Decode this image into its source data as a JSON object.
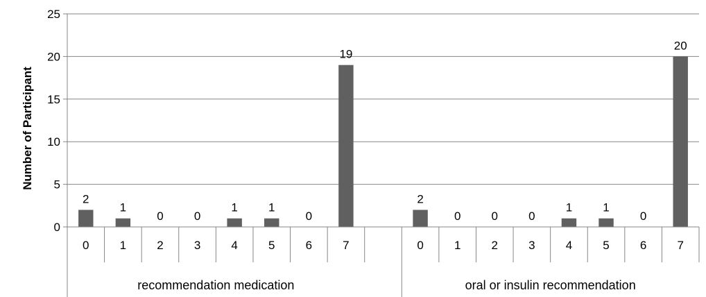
{
  "chart_data": {
    "type": "bar",
    "ylabel": "Number of Participant",
    "xlabel": "",
    "ylim": [
      0,
      25
    ],
    "y_ticks": [
      "0",
      "5",
      "10",
      "15",
      "20",
      "25"
    ],
    "grid": true,
    "bar_color": "#606060",
    "grid_color": "#868686",
    "groups": [
      {
        "name": "recommendation medication",
        "categories": [
          "0",
          "1",
          "2",
          "3",
          "4",
          "5",
          "6",
          "7"
        ],
        "values": [
          2,
          1,
          0,
          0,
          1,
          1,
          0,
          19
        ]
      },
      {
        "name": "oral or insulin recommendation",
        "categories": [
          "0",
          "1",
          "2",
          "3",
          "4",
          "5",
          "6",
          "7"
        ],
        "values": [
          2,
          0,
          0,
          0,
          1,
          1,
          0,
          20
        ]
      }
    ]
  }
}
